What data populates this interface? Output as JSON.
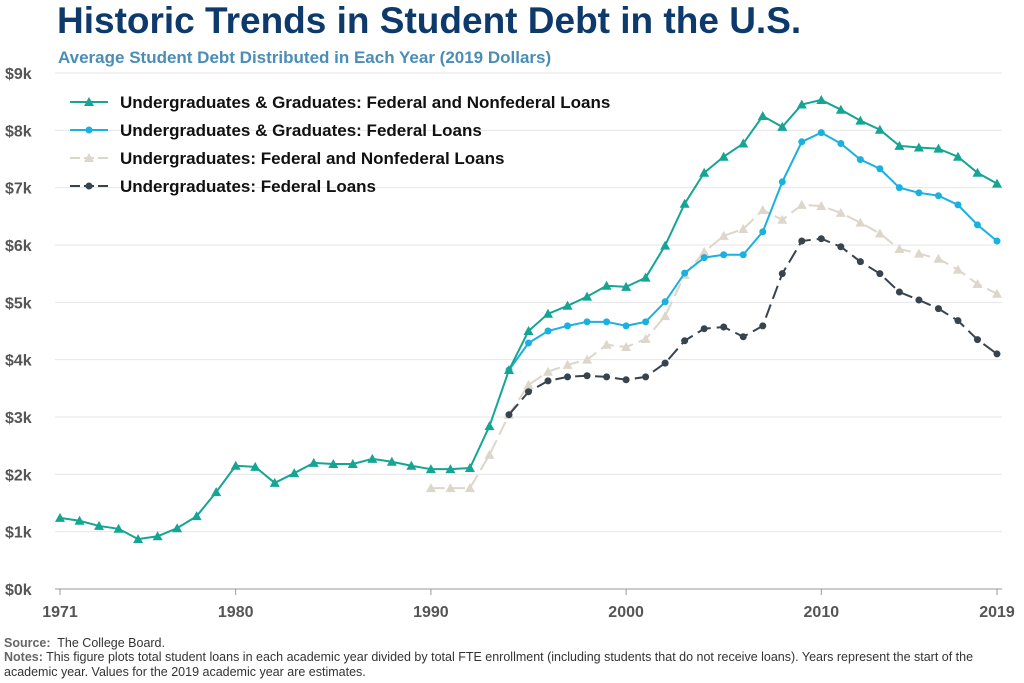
{
  "title": "Historic Trends in Student Debt in the U.S.",
  "subtitle": "Average Student Debt Distributed in Each Year (2019 Dollars)",
  "source_label": "Source:",
  "source_text": "The College Board.",
  "notes_label": "Notes:",
  "notes_text": "This figure plots total student loans in each academic year divided by total FTE enrollment (including students that do not receive loans). Years represent the start of the academic year. Values for the 2019 academic year are estimates.",
  "chart_data": {
    "type": "line",
    "title": "Historic Trends in Student Debt in the U.S.",
    "xlabel": "",
    "ylabel": "",
    "xlim": [
      1971,
      2019
    ],
    "ylim": [
      0,
      9
    ],
    "x_ticks": [
      1971,
      1980,
      1990,
      2000,
      2010,
      2019
    ],
    "y_ticks": [
      0,
      1,
      2,
      3,
      4,
      5,
      6,
      7,
      8,
      9
    ],
    "y_tick_labels": [
      "$0k",
      "$1k",
      "$2k",
      "$3k",
      "$4k",
      "$5k",
      "$6k",
      "$7k",
      "$8k",
      "$9k"
    ],
    "grid": true,
    "legend_position": "top-left",
    "series": [
      {
        "name": "Undergraduates & Graduates: Federal and Nonfederal Loans",
        "color": "#14a594",
        "marker": "triangle",
        "dashed": false,
        "start": 1971,
        "values": [
          1.24,
          1.19,
          1.1,
          1.05,
          0.87,
          0.92,
          1.06,
          1.27,
          1.69,
          2.15,
          2.13,
          1.85,
          2.02,
          2.2,
          2.18,
          2.18,
          2.27,
          2.22,
          2.15,
          2.09,
          2.09,
          2.11,
          2.84,
          3.82,
          4.5,
          4.8,
          4.94,
          5.1,
          5.29,
          5.27,
          5.43,
          5.99,
          6.72,
          7.26,
          7.54,
          7.77,
          8.25,
          8.06,
          8.45,
          8.53,
          8.36,
          8.17,
          8.01,
          7.73,
          7.7,
          7.68,
          7.54,
          7.26,
          7.07
        ]
      },
      {
        "name": "Undergraduates & Graduates: Federal Loans",
        "color": "#1ab0e0",
        "marker": "circle",
        "dashed": false,
        "start": 1994,
        "values": [
          3.82,
          4.29,
          4.5,
          4.59,
          4.66,
          4.66,
          4.59,
          4.66,
          5.01,
          5.51,
          5.78,
          5.83,
          5.83,
          6.23,
          7.1,
          7.8,
          7.96,
          7.77,
          7.49,
          7.33,
          7.0,
          6.91,
          6.86,
          6.7,
          6.35,
          6.07
        ]
      },
      {
        "name": "Undergraduates: Federal and Nonfederal Loans",
        "color": "#ddd6cb",
        "marker": "triangle",
        "dashed": true,
        "start": 1990,
        "values": [
          1.76,
          1.76,
          1.76,
          2.34,
          3.04,
          3.56,
          3.79,
          3.91,
          4.0,
          4.26,
          4.22,
          4.36,
          4.76,
          5.48,
          5.88,
          6.16,
          6.28,
          6.61,
          6.44,
          6.7,
          6.68,
          6.56,
          6.39,
          6.2,
          5.93,
          5.85,
          5.76,
          5.57,
          5.32,
          5.15
        ]
      },
      {
        "name": "Undergraduates: Federal Loans",
        "color": "#37444e",
        "marker": "circle",
        "dashed": true,
        "start": 1994,
        "values": [
          3.04,
          3.44,
          3.63,
          3.7,
          3.72,
          3.7,
          3.65,
          3.7,
          3.94,
          4.33,
          4.54,
          4.57,
          4.4,
          4.59,
          5.5,
          6.07,
          6.11,
          5.97,
          5.71,
          5.5,
          5.18,
          5.04,
          4.89,
          4.68,
          4.35,
          4.1
        ]
      }
    ]
  }
}
